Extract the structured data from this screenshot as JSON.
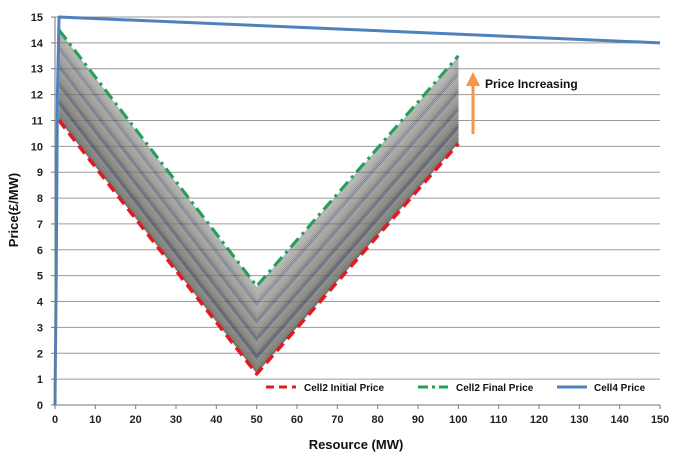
{
  "chart_data": {
    "type": "line",
    "xlabel": "Resource (MW)",
    "ylabel": "Price(£/MW)",
    "xlim": [
      0,
      150
    ],
    "ylim": [
      0,
      15
    ],
    "x_ticks": [
      0,
      10,
      20,
      30,
      40,
      50,
      60,
      70,
      80,
      90,
      100,
      110,
      120,
      130,
      140,
      150
    ],
    "y_ticks": [
      0,
      1,
      2,
      3,
      4,
      5,
      6,
      7,
      8,
      9,
      10,
      11,
      12,
      13,
      14,
      15
    ],
    "grid": "horizontal",
    "legend_position": "bottom-right",
    "annotation": {
      "text": "Price Increasing",
      "arrow": "up",
      "arrow_color": "#F79646"
    },
    "series": [
      {
        "name": "Cell2 Initial Price",
        "style": "dashed",
        "color": "#E41A1C",
        "x": [
          1,
          50,
          100
        ],
        "y": [
          11.0,
          1.2,
          10.1
        ]
      },
      {
        "name": "Cell2 Final Price",
        "style": "dash-dot",
        "color": "#22A055",
        "x": [
          1,
          50,
          100
        ],
        "y": [
          14.5,
          4.6,
          13.5
        ]
      },
      {
        "name": "Cell4 Price",
        "style": "solid",
        "color": "#4F81BD",
        "x": [
          0,
          0.3,
          0.6,
          1,
          150
        ],
        "y": [
          0,
          5,
          12,
          15,
          14.0
        ]
      }
    ],
    "intermediate_band": {
      "from_series": "Cell2 Initial Price",
      "to_series": "Cell2 Final Price",
      "count": 40
    }
  }
}
